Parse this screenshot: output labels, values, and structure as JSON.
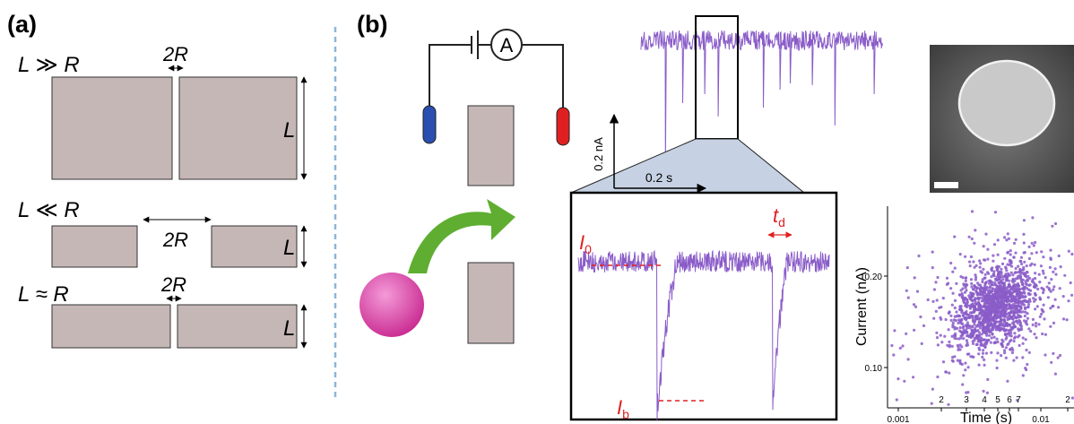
{
  "panel_a": {
    "label": "(a)",
    "cases": [
      {
        "condition": "L ≫ R",
        "gap": "2R",
        "side": "L"
      },
      {
        "condition": "L ≪ R",
        "gap": "2R",
        "side": "L"
      },
      {
        "condition": "L ≈ R",
        "gap": "2R",
        "side": "L"
      }
    ]
  },
  "panel_b": {
    "label": "(b)",
    "ammeter": "A",
    "scale_current": "0.2 nA",
    "scale_time": "0.2 s",
    "open_current": {
      "symbol": "I",
      "subscript": "0"
    },
    "dwell_time": {
      "symbol": "t",
      "subscript": "d"
    },
    "blocked_current": {
      "symbol": "I",
      "subscript": "b"
    },
    "scatter": {
      "y_label": "Current (nA)",
      "x_label": "Time (s)",
      "y_ticks": [
        "0.20",
        "0.10"
      ],
      "x_ticks": [
        "0.001",
        "2",
        "3",
        "4",
        "5",
        "6",
        "7",
        "0.01",
        "2"
      ]
    }
  }
}
